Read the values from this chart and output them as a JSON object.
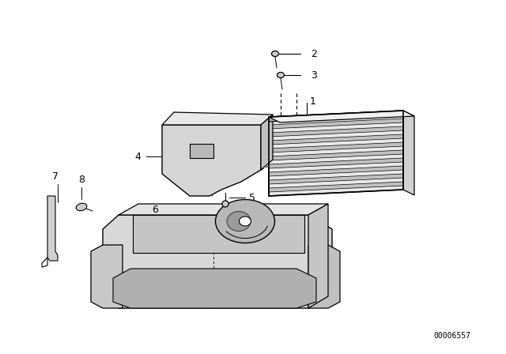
{
  "background_color": "#ffffff",
  "figure_width": 6.4,
  "figure_height": 4.48,
  "dpi": 100,
  "watermark_text": "00006557",
  "watermark_fontsize": 7
}
